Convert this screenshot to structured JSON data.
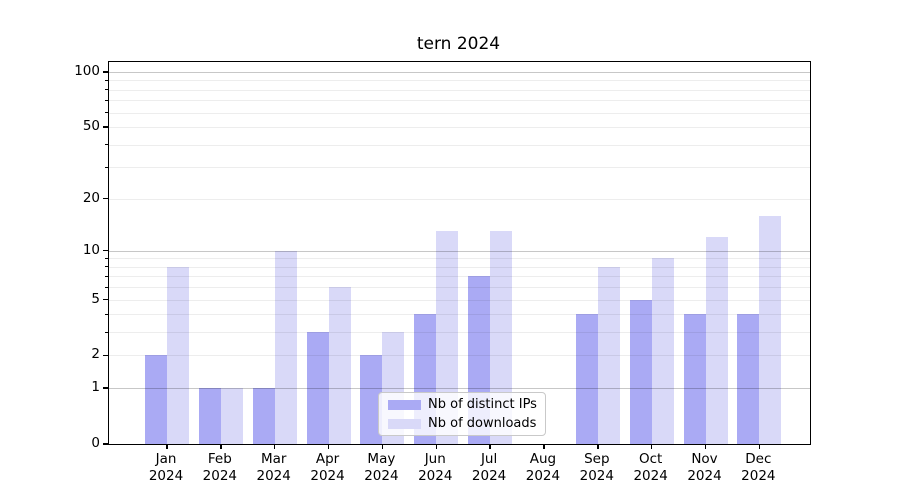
{
  "figure": {
    "background": "#ffffff"
  },
  "chart_data": {
    "type": "bar",
    "title": "tern 2024",
    "categories": [
      {
        "month": "Jan",
        "year": "2024"
      },
      {
        "month": "Feb",
        "year": "2024"
      },
      {
        "month": "Mar",
        "year": "2024"
      },
      {
        "month": "Apr",
        "year": "2024"
      },
      {
        "month": "May",
        "year": "2024"
      },
      {
        "month": "Jun",
        "year": "2024"
      },
      {
        "month": "Jul",
        "year": "2024"
      },
      {
        "month": "Aug",
        "year": "2024"
      },
      {
        "month": "Sep",
        "year": "2024"
      },
      {
        "month": "Oct",
        "year": "2024"
      },
      {
        "month": "Nov",
        "year": "2024"
      },
      {
        "month": "Dec",
        "year": "2024"
      }
    ],
    "series": [
      {
        "name": "Nb of distinct IPs",
        "color": "#aaaaf4",
        "values": [
          2,
          1,
          1,
          3,
          2,
          4,
          7,
          0,
          4,
          5,
          4,
          4
        ]
      },
      {
        "name": "Nb of downloads",
        "color": "#d9d9f8",
        "values": [
          8,
          1,
          10,
          6,
          3,
          13,
          13,
          0,
          8,
          9,
          12,
          16
        ]
      }
    ],
    "xlabel": "",
    "ylabel": "",
    "yscale": "log1p",
    "yticks": [
      0,
      1,
      2,
      5,
      10,
      20,
      50,
      100
    ],
    "ylim": [
      0,
      117
    ],
    "grid": true,
    "grid_major_values": [
      1,
      10,
      100
    ],
    "grid_minor_values": [
      2,
      3,
      4,
      5,
      6,
      7,
      8,
      9,
      20,
      30,
      40,
      50,
      60,
      70,
      80,
      90
    ],
    "legend_position": "lower center",
    "colors": {
      "major_grid": "#c7c7c7",
      "minor_grid": "#ededed",
      "spine": "#000000",
      "text": "#000000",
      "legend_border": "#c9c9c9"
    }
  }
}
